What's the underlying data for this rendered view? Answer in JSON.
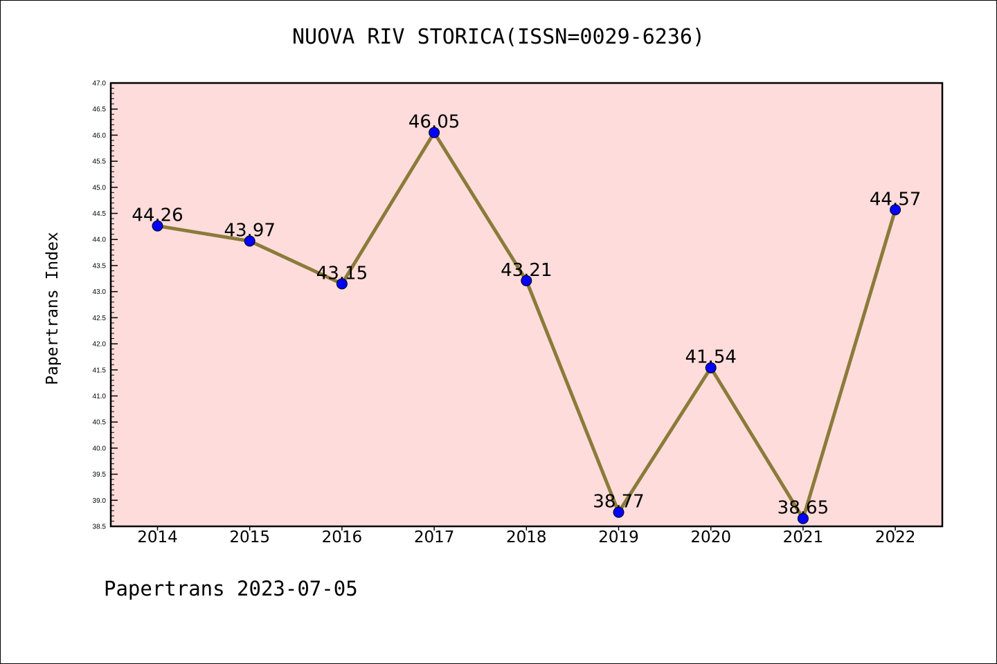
{
  "chart_data": {
    "type": "line",
    "title": "NUOVA RIV STORICA(ISSN=0029-6236)",
    "xlabel": "",
    "ylabel": "Papertrans Index",
    "categories": [
      "2014",
      "2015",
      "2016",
      "2017",
      "2018",
      "2019",
      "2020",
      "2021",
      "2022"
    ],
    "series": [
      {
        "values": [
          44.26,
          43.97,
          43.15,
          46.05,
          43.21,
          38.77,
          41.54,
          38.65,
          44.57
        ]
      }
    ],
    "data_labels": [
      "44.26",
      "43.97",
      "43.15",
      "46.05",
      "43.21",
      "38.77",
      "41.54",
      "38.65",
      "44.57"
    ],
    "ylim": [
      38.5,
      47.0
    ],
    "yticks": [
      "38.5",
      "39.0",
      "39.5",
      "40.0",
      "40.5",
      "41.0",
      "41.5",
      "42.0",
      "42.5",
      "43.0",
      "43.5",
      "44.0",
      "44.5",
      "45.0",
      "45.5",
      "46.0",
      "46.5",
      "47.0"
    ],
    "grid": false,
    "colors": {
      "plot_background": "#fddcdb",
      "line": "#8b7b3a",
      "marker": "#0000ff"
    }
  },
  "footer": "Papertrans 2023-07-05"
}
